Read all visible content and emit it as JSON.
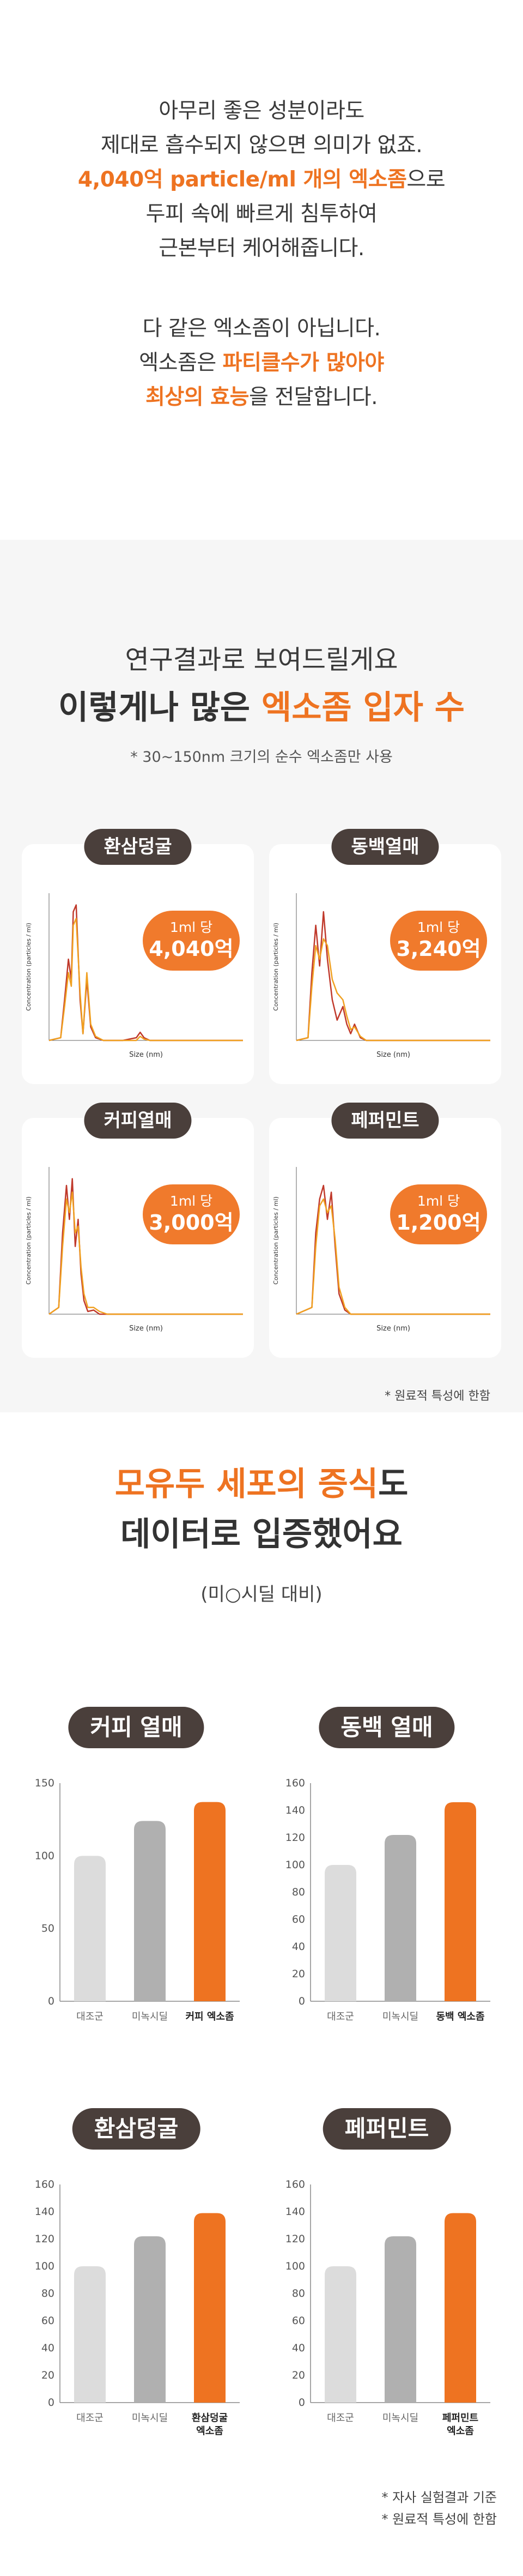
{
  "intro": {
    "line1": "아무리 좋은 성분이라도",
    "line2": "제대로 흡수되지 않으면 의미가 없죠.",
    "line3_highlight": "4,040억 particle/ml 개의 엑소좀",
    "line3_rest": "으로",
    "line4": "두피 속에 빠르게 침투하여",
    "line5": "근본부터 케어해줍니다.",
    "line6": "다 같은 엑소좀이 아닙니다.",
    "line7_pre": "엑소좀은 ",
    "line7_highlight": "파티클수가 많아야",
    "line8_highlight": "최상의 효능",
    "line8_rest": "을 전달합니다."
  },
  "research": {
    "heading1": "연구결과로 보여드릴게요",
    "heading2_pre": "이렇게나 많은 ",
    "heading2_highlight": "엑소좀 입자 수",
    "subtitle": "* 30~150nm 크기의 순수 엑소좀만 사용",
    "note": "* 원료적 특성에 한함",
    "badge_unit": "1ml 당"
  },
  "size_charts": {
    "y_label": "Concentration (particles / ml)",
    "x_label": "Size (nm)"
  },
  "prolif": {
    "heading1_highlight": "모유두 세포의 증식",
    "heading1_rest": "도",
    "heading2": "데이터로 입증했어요",
    "subtitle": "(미○시딜 대비)",
    "note1": "* 자사 실험결과 기준",
    "note2": "* 원료적 특성에 한함"
  },
  "chart_data": [
    {
      "type": "line",
      "title": "환삼덩굴",
      "annotation": "4,040억",
      "xlabel": "Size (nm)",
      "ylabel": "Concentration (particles / ml)",
      "xlim": [
        0,
        1000
      ],
      "x": [
        0,
        60,
        80,
        100,
        115,
        125,
        140,
        160,
        175,
        195,
        215,
        240,
        280,
        320,
        380,
        450,
        470,
        490,
        520,
        600,
        1000
      ],
      "series": [
        {
          "values": [
            0,
            0.02,
            0.3,
            0.6,
            0.45,
            0.95,
            1.0,
            0.3,
            0.05,
            0.45,
            0.1,
            0.02,
            0,
            0,
            0,
            0.02,
            0.06,
            0.02,
            0,
            0,
            0
          ]
        },
        {
          "values": [
            0,
            0.02,
            0.25,
            0.5,
            0.4,
            0.85,
            0.9,
            0.35,
            0.05,
            0.5,
            0.12,
            0.03,
            0,
            0,
            0,
            0,
            0.03,
            0.01,
            0,
            0,
            0
          ]
        }
      ]
    },
    {
      "type": "line",
      "title": "동백열매",
      "annotation": "3,240억",
      "xlabel": "Size (nm)",
      "ylabel": "Concentration (particles / ml)",
      "xlim": [
        0,
        1000
      ],
      "x": [
        0,
        60,
        80,
        100,
        120,
        140,
        160,
        185,
        210,
        240,
        260,
        280,
        300,
        330,
        360,
        400,
        1000
      ],
      "series": [
        {
          "values": [
            0,
            0.02,
            0.5,
            0.85,
            0.55,
            0.95,
            0.6,
            0.3,
            0.15,
            0.25,
            0.12,
            0.05,
            0.12,
            0.02,
            0,
            0,
            0
          ]
        },
        {
          "values": [
            0,
            0.02,
            0.4,
            0.7,
            0.6,
            0.75,
            0.7,
            0.45,
            0.35,
            0.3,
            0.18,
            0.08,
            0.1,
            0.03,
            0,
            0,
            0
          ]
        }
      ]
    },
    {
      "type": "line",
      "title": "커피열매",
      "annotation": "3,000억",
      "xlabel": "Size (nm)",
      "ylabel": "Concentration (particles / ml)",
      "xlim": [
        0,
        1000
      ],
      "x": [
        0,
        50,
        70,
        90,
        105,
        120,
        135,
        150,
        165,
        180,
        200,
        230,
        260,
        300,
        1000
      ],
      "series": [
        {
          "values": [
            0,
            0.05,
            0.6,
            0.95,
            0.7,
            1.0,
            0.5,
            0.7,
            0.3,
            0.1,
            0.02,
            0.03,
            0,
            0,
            0
          ]
        },
        {
          "values": [
            0,
            0.05,
            0.5,
            0.85,
            0.75,
            0.9,
            0.6,
            0.65,
            0.35,
            0.15,
            0.05,
            0.05,
            0.02,
            0,
            0
          ]
        }
      ]
    },
    {
      "type": "line",
      "title": "페퍼민트",
      "annotation": "1,200억",
      "xlabel": "Size (nm)",
      "ylabel": "Concentration (particles / ml)",
      "xlim": [
        0,
        1000
      ],
      "x": [
        0,
        80,
        100,
        120,
        140,
        160,
        180,
        200,
        220,
        250,
        280,
        1000
      ],
      "series": [
        {
          "values": [
            0,
            0.05,
            0.6,
            0.85,
            0.95,
            0.7,
            0.9,
            0.5,
            0.15,
            0.03,
            0,
            0
          ]
        },
        {
          "values": [
            0,
            0.05,
            0.5,
            0.8,
            0.85,
            0.75,
            0.8,
            0.55,
            0.2,
            0.05,
            0,
            0
          ]
        }
      ]
    },
    {
      "type": "bar",
      "title": "커피 열매",
      "categories": [
        "대조군",
        "미녹시딜",
        "커피 엑소좀"
      ],
      "values": [
        100,
        124,
        137
      ],
      "ylim": [
        0,
        150
      ],
      "yticks": [
        0,
        50,
        100,
        150
      ]
    },
    {
      "type": "bar",
      "title": "동백 열매",
      "categories": [
        "대조군",
        "미녹시딜",
        "동백 엑소좀"
      ],
      "values": [
        100,
        122,
        146
      ],
      "ylim": [
        0,
        160
      ],
      "yticks": [
        0,
        20,
        40,
        60,
        80,
        100,
        120,
        140,
        160
      ]
    },
    {
      "type": "bar",
      "title": "환삼덩굴",
      "categories": [
        "대조군",
        "미녹시딜",
        "환삼덩굴 엑소좀"
      ],
      "values": [
        100,
        122,
        139
      ],
      "ylim": [
        0,
        160
      ],
      "yticks": [
        0,
        20,
        40,
        60,
        80,
        100,
        120,
        140,
        160
      ]
    },
    {
      "type": "bar",
      "title": "페퍼민트",
      "categories": [
        "대조군",
        "미녹시딜",
        "페퍼민트 엑소좀"
      ],
      "values": [
        100,
        122,
        139
      ],
      "ylim": [
        0,
        160
      ],
      "yticks": [
        0,
        20,
        40,
        60,
        80,
        100,
        120,
        140,
        160
      ]
    }
  ],
  "colors": {
    "accent": "#ee7321",
    "pill_bg": "#4a3f3b",
    "line_a": "#c0392b",
    "line_b": "#f0a020",
    "bar_control": "#dcdcdc",
    "bar_minoxidil": "#b0b0b0",
    "bar_exosome": "#ee7321"
  }
}
